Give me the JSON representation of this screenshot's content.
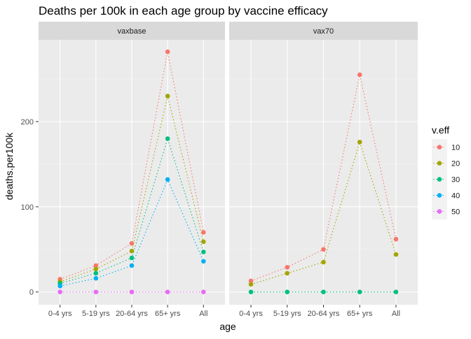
{
  "chart_data": {
    "type": "line",
    "title": "Deaths per 100k in each age group by vaccine efficacy",
    "xlabel": "age",
    "ylabel": "deaths.per100k",
    "categories": [
      "0-4 yrs",
      "5-19 yrs",
      "20-64 yrs",
      "65+ yrs",
      "All"
    ],
    "y_ticks": [
      0,
      100,
      200
    ],
    "ylim": [
      -15,
      296
    ],
    "grid": true,
    "line_style": "dotted",
    "legend": {
      "title": "v.eff",
      "position": "right",
      "entries": [
        "10",
        "20",
        "30",
        "40",
        "50"
      ],
      "colors": [
        "#F8766D",
        "#A3A500",
        "#00BF7D",
        "#00B0F6",
        "#E76BF3"
      ]
    },
    "panels": [
      {
        "strip_label": "vaxbase",
        "series": [
          {
            "name": "10",
            "values": [
              15,
              31,
              57,
              282,
              70
            ]
          },
          {
            "name": "20",
            "values": [
              12,
              27,
              48,
              230,
              59
            ]
          },
          {
            "name": "30",
            "values": [
              10,
              22,
              40,
              180,
              47
            ]
          },
          {
            "name": "40",
            "values": [
              7,
              16,
              31,
              132,
              36
            ]
          },
          {
            "name": "50",
            "values": [
              0,
              0,
              0,
              0,
              0
            ]
          }
        ]
      },
      {
        "strip_label": "vax70",
        "series": [
          {
            "name": "10",
            "values": [
              13,
              29,
              50,
              255,
              62
            ]
          },
          {
            "name": "20",
            "values": [
              9,
              22,
              35,
              176,
              44
            ]
          },
          {
            "name": "30",
            "values": [
              0,
              0,
              0,
              0,
              0
            ]
          }
        ]
      }
    ]
  }
}
